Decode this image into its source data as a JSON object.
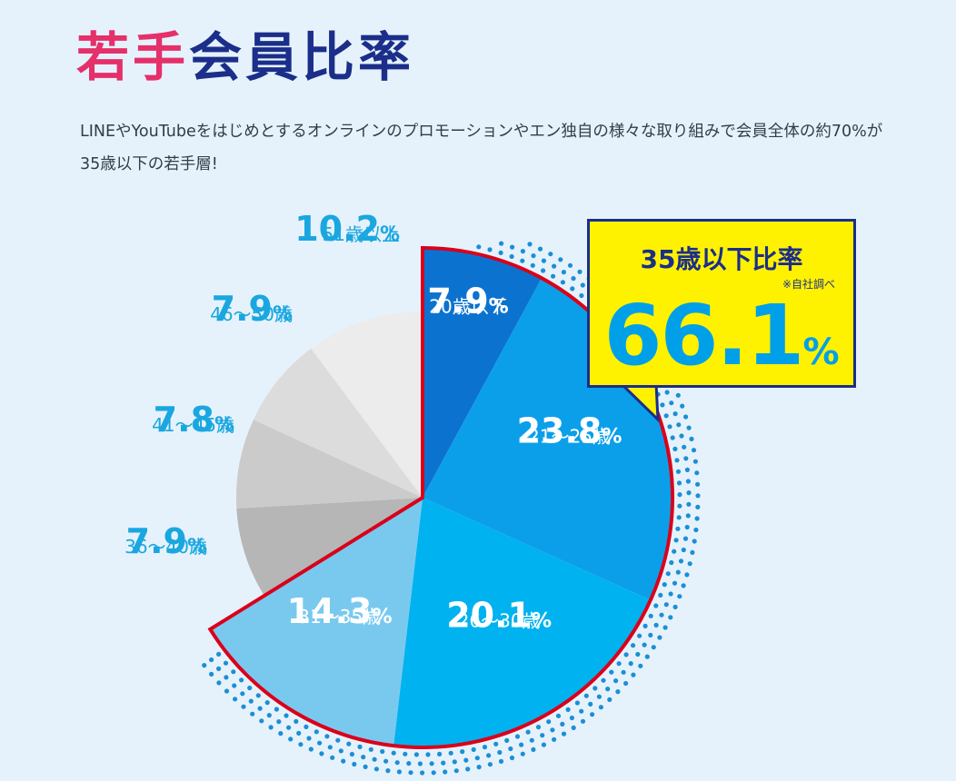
{
  "header": {
    "title_accent": "若手",
    "title_main": "会員比率",
    "description": "LINEやYouTubeをはじめとするオンラインのプロモーションやエン独自の様々な取り組みで会員全体の約70%が35歳以下の若手層!"
  },
  "callout": {
    "title": "35歳以下比率",
    "note": "※自社調べ",
    "value": "66.1",
    "unit": "%"
  },
  "chart_data": {
    "type": "pie",
    "unit": "%",
    "categories": [
      "20歳以下",
      "21〜25歳",
      "26〜30歳",
      "31〜35歳",
      "36〜40歳",
      "41〜45歳",
      "46〜50歳",
      "51歳以上"
    ],
    "values": [
      7.9,
      23.8,
      20.1,
      14.3,
      7.9,
      7.8,
      7.9,
      10.2
    ],
    "highlight": [
      "20歳以下",
      "21〜25歳",
      "26〜30歳",
      "31〜35歳"
    ],
    "colors": {
      "slices": [
        "#0b73cf",
        "#0b9fea",
        "#00b2ef",
        "#79c9ef",
        "#b6b6b6",
        "#cbcbcb",
        "#dcdcdc",
        "#ececec"
      ],
      "inside_label": "#ffffff",
      "outside_label": "#1aa7e0",
      "highlight_border": "#d9001b",
      "dots": "#1b8fd6"
    }
  }
}
